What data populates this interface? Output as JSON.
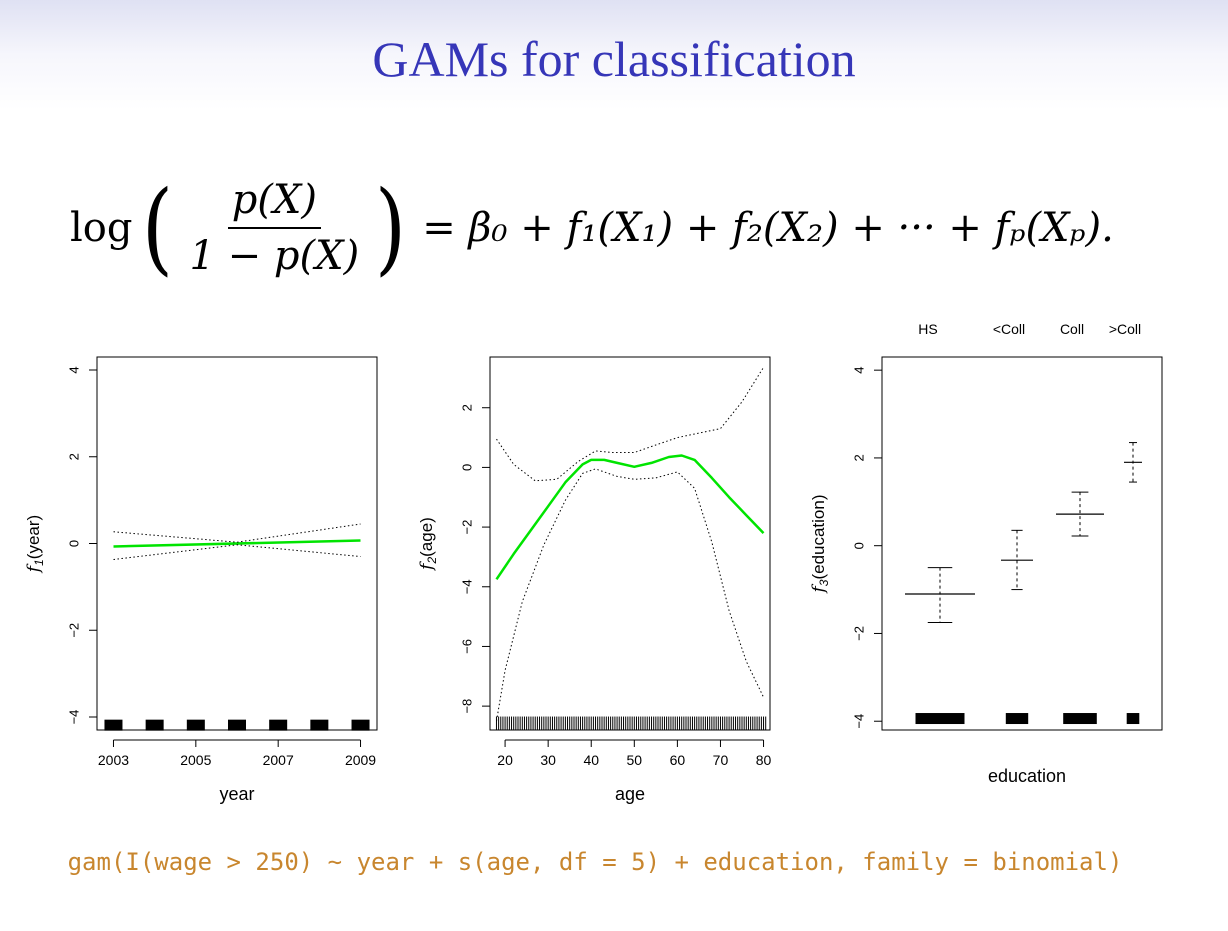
{
  "slide": {
    "title": "GAMs for classification",
    "formula": {
      "log": "log",
      "numerator": "p(X)",
      "denominator": "1 − p(X)",
      "rhs": "= β₀ + f₁(X₁) + f₂(X₂) + ··· + fₚ(Xₚ)."
    },
    "footer_code": "gam(I(wage > 250) ∼ year + s(age, df = 5) + education, family = binomial)"
  },
  "colors": {
    "title": "#3636b8",
    "fit_line": "#00e400",
    "code": "#c8862e"
  },
  "chart_data": [
    {
      "type": "line",
      "xlabel": "year",
      "ylabel": "f1(year)",
      "xlim": [
        2002.6,
        2009.4
      ],
      "ylim": [
        -4.3,
        4.3
      ],
      "xticks": [
        2003,
        2005,
        2007,
        2009
      ],
      "xtick_labels": [
        "2003",
        "2005",
        "2007",
        "2009"
      ],
      "yticks": [
        -4,
        -2,
        0,
        2,
        4
      ],
      "ytick_labels": [
        "−4",
        "−2",
        "0",
        "2",
        "4"
      ],
      "series": [
        {
          "role": "fit",
          "x": [
            2003,
            2009
          ],
          "y": [
            -0.07,
            0.07
          ]
        },
        {
          "role": "upper",
          "x": [
            2003,
            2006,
            2009
          ],
          "y": [
            0.27,
            0.03,
            0.45
          ]
        },
        {
          "role": "lower",
          "x": [
            2003,
            2006,
            2009
          ],
          "y": [
            -0.37,
            -0.03,
            -0.3
          ]
        }
      ],
      "rug": {
        "y": -4.2,
        "x": [
          2003,
          2004,
          2005,
          2006,
          2007,
          2008,
          2009
        ]
      }
    },
    {
      "type": "line",
      "xlabel": "age",
      "ylabel": "f2(age)",
      "xlim": [
        16.5,
        81.5
      ],
      "ylim": [
        -8.8,
        3.7
      ],
      "xticks": [
        20,
        30,
        40,
        50,
        60,
        70,
        80
      ],
      "xtick_labels": [
        "20",
        "30",
        "40",
        "50",
        "60",
        "70",
        "80"
      ],
      "yticks": [
        -8,
        -6,
        -4,
        -2,
        0,
        2
      ],
      "ytick_labels": [
        "−8",
        "−6",
        "−4",
        "−2",
        "0",
        "2"
      ],
      "series": [
        {
          "role": "fit",
          "x": [
            18,
            22,
            26,
            30,
            34,
            38,
            40,
            43,
            46,
            50,
            54,
            58,
            61,
            64,
            68,
            72,
            76,
            80
          ],
          "y": [
            -3.75,
            -2.9,
            -2.1,
            -1.3,
            -0.5,
            0.1,
            0.25,
            0.25,
            0.15,
            0.02,
            0.15,
            0.35,
            0.4,
            0.25,
            -0.35,
            -1.0,
            -1.6,
            -2.2
          ]
        },
        {
          "role": "upper",
          "x": [
            18,
            22,
            27,
            32,
            37,
            41,
            45,
            50,
            55,
            60,
            65,
            70,
            75,
            80
          ],
          "y": [
            0.95,
            0.1,
            -0.45,
            -0.4,
            0.2,
            0.55,
            0.5,
            0.5,
            0.75,
            1.0,
            1.15,
            1.3,
            2.2,
            3.35
          ]
        },
        {
          "role": "lower",
          "x": [
            18,
            20,
            24,
            29,
            34,
            38,
            41,
            46,
            50,
            55,
            60,
            64,
            68,
            72,
            76,
            80
          ],
          "y": [
            -8.5,
            -6.8,
            -4.5,
            -2.6,
            -1.1,
            -0.2,
            -0.05,
            -0.3,
            -0.4,
            -0.35,
            -0.15,
            -0.7,
            -2.5,
            -4.8,
            -6.5,
            -7.7
          ]
        }
      ],
      "rug": {
        "y": -8.55,
        "x_from": 18,
        "x_to": 80
      }
    },
    {
      "type": "bar",
      "xlabel": "education",
      "ylabel": "f3(education)",
      "categories": [
        "HS",
        "<Coll",
        "Coll",
        ">Coll"
      ],
      "ylim": [
        -4.2,
        4.3
      ],
      "yticks": [
        -4,
        -2,
        0,
        2,
        4
      ],
      "ytick_labels": [
        "−4",
        "−2",
        "0",
        "2",
        "4"
      ],
      "values": [
        -1.1,
        -0.33,
        0.72,
        1.9
      ],
      "upper": [
        -0.5,
        0.35,
        1.22,
        2.35
      ],
      "lower": [
        -1.75,
        -1.0,
        0.22,
        1.45
      ],
      "rug_y": -3.95
    }
  ]
}
